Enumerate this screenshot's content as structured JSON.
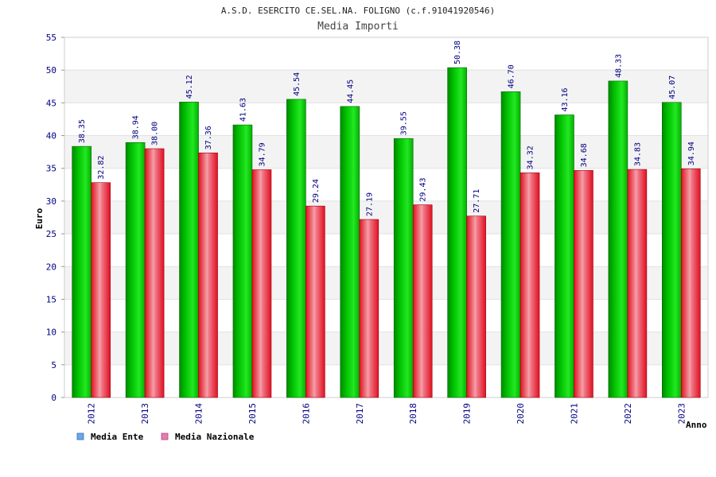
{
  "chart_data": {
    "type": "bar",
    "title": "A.S.D. ESERCITO CE.SEL.NA. FOLIGNO (c.f.91041920546)",
    "subtitle": "Media Importi",
    "xlabel": "Anno",
    "ylabel": "Euro",
    "ylim": [
      0,
      55
    ],
    "yticks": [
      0,
      5,
      10,
      15,
      20,
      25,
      30,
      35,
      40,
      45,
      50,
      55
    ],
    "grid": true,
    "legend_position": "bottom-left",
    "categories": [
      "2012",
      "2013",
      "2014",
      "2015",
      "2016",
      "2017",
      "2018",
      "2019",
      "2020",
      "2021",
      "2022",
      "2023"
    ],
    "series": [
      {
        "name": "Media Ente",
        "color": "#00c800",
        "legend_color": "#6aa8e8",
        "values": [
          38.35,
          38.94,
          45.12,
          41.63,
          45.54,
          44.45,
          39.55,
          50.38,
          46.7,
          43.16,
          48.33,
          45.07
        ],
        "labels": [
          "38.35",
          "38.94",
          "45.12",
          "41.63",
          "45.54",
          "44.45",
          "39.55",
          "50.38",
          "46.70",
          "43.16",
          "48.33",
          "45.07"
        ]
      },
      {
        "name": "Media Nazionale",
        "color": "#e8101e",
        "legend_color": "#e87ab0",
        "values": [
          32.82,
          38.0,
          37.36,
          34.79,
          29.24,
          27.19,
          29.43,
          27.71,
          34.32,
          34.68,
          34.83,
          34.94
        ],
        "labels": [
          "32.82",
          "38.00",
          "37.36",
          "34.79",
          "29.24",
          "27.19",
          "29.43",
          "27.71",
          "34.32",
          "34.68",
          "34.83",
          "34.94"
        ]
      }
    ]
  }
}
